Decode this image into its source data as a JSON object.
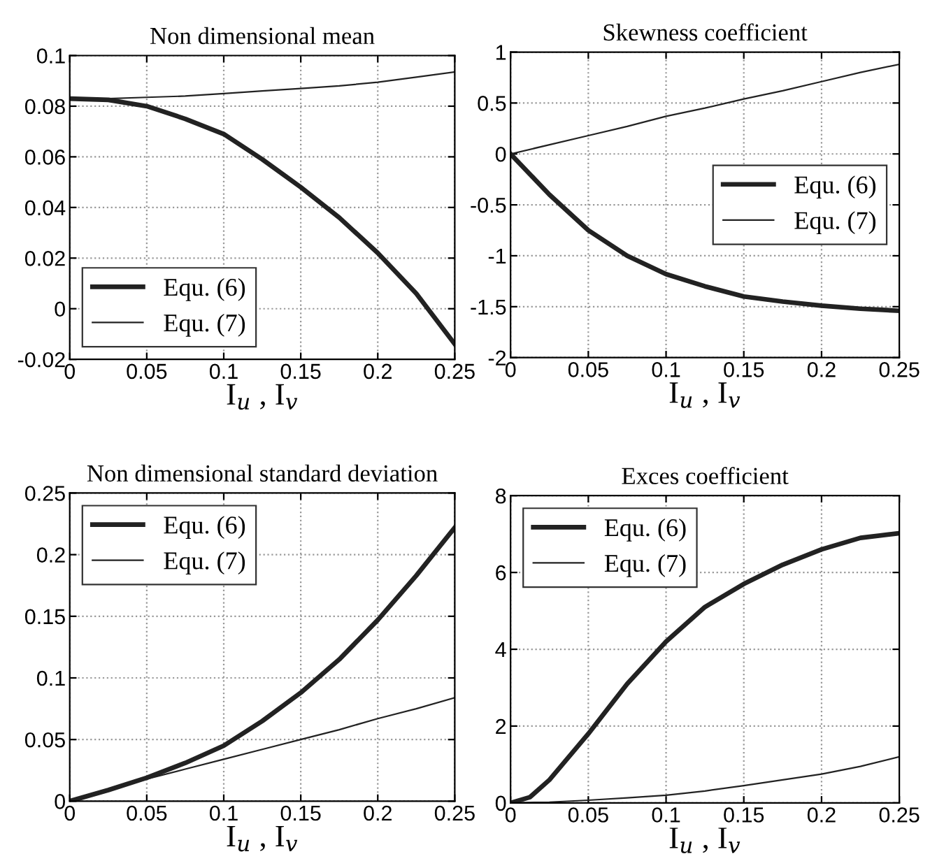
{
  "chart_data": [
    {
      "type": "line",
      "title": "Non dimensional mean",
      "xlabel": "I$_{u}$ , I$_{v}$",
      "x": [
        0,
        0.025,
        0.05,
        0.075,
        0.1,
        0.125,
        0.15,
        0.175,
        0.2,
        0.225,
        0.25
      ],
      "series": [
        {
          "name": "Equ. (6)",
          "color": "#222222",
          "values": [
            0.083,
            0.0825,
            0.08,
            0.075,
            0.069,
            0.059,
            0.048,
            0.036,
            0.022,
            0.006,
            -0.014
          ]
        },
        {
          "name": "Equ. (7)",
          "color": "#222222",
          "values": [
            0.083,
            0.083,
            0.0835,
            0.084,
            0.085,
            0.086,
            0.087,
            0.088,
            0.0895,
            0.0915,
            0.0935
          ]
        }
      ],
      "xlim": [
        0,
        0.25
      ],
      "ylim": [
        -0.02,
        0.1
      ],
      "xticks": [
        0,
        0.05,
        0.1,
        0.15,
        0.2,
        0.25
      ],
      "yticks": [
        -0.02,
        0,
        0.02,
        0.04,
        0.06,
        0.08,
        0.1
      ],
      "grid": true,
      "legend": "bottom left",
      "line_style": "solid",
      "marker": "none"
    },
    {
      "type": "line",
      "title": "Skewness coefficient",
      "xlabel": "I$_{u}$ , I$_{v}$",
      "x": [
        0,
        0.025,
        0.05,
        0.075,
        0.1,
        0.125,
        0.15,
        0.175,
        0.2,
        0.225,
        0.25
      ],
      "series": [
        {
          "name": "Equ. (6)",
          "color": "#222222",
          "values": [
            0,
            -0.4,
            -0.75,
            -1.0,
            -1.18,
            -1.3,
            -1.4,
            -1.45,
            -1.49,
            -1.52,
            -1.54
          ]
        },
        {
          "name": "Equ. (7)",
          "color": "#222222",
          "values": [
            0,
            0.09,
            0.18,
            0.27,
            0.37,
            0.45,
            0.54,
            0.62,
            0.71,
            0.8,
            0.88
          ]
        }
      ],
      "xlim": [
        0,
        0.25
      ],
      "ylim": [
        -2,
        1
      ],
      "xticks": [
        0,
        0.05,
        0.1,
        0.15,
        0.2,
        0.25
      ],
      "yticks": [
        -2,
        -1.5,
        -1,
        -0.5,
        0,
        0.5,
        1
      ],
      "grid": true,
      "legend": "right",
      "line_style": "solid",
      "marker": "none"
    },
    {
      "type": "line",
      "title": "Non dimensional standard deviation",
      "xlabel": "I$_{u}$ , I$_{v}$",
      "x": [
        0,
        0.025,
        0.05,
        0.075,
        0.1,
        0.125,
        0.15,
        0.175,
        0.2,
        0.225,
        0.25
      ],
      "series": [
        {
          "name": "Equ. (6)",
          "color": "#222222",
          "values": [
            0,
            0.009,
            0.019,
            0.031,
            0.045,
            0.065,
            0.088,
            0.115,
            0.147,
            0.183,
            0.222
          ]
        },
        {
          "name": "Equ. (7)",
          "color": "#222222",
          "values": [
            0,
            0.009,
            0.018,
            0.026,
            0.034,
            0.042,
            0.05,
            0.058,
            0.067,
            0.075,
            0.084
          ]
        }
      ],
      "xlim": [
        0,
        0.25
      ],
      "ylim": [
        0,
        0.25
      ],
      "xticks": [
        0,
        0.05,
        0.1,
        0.15,
        0.2,
        0.25
      ],
      "yticks": [
        0,
        0.05,
        0.1,
        0.15,
        0.2,
        0.25
      ],
      "grid": true,
      "legend": "top left",
      "line_style": "solid",
      "marker": "none"
    },
    {
      "type": "line",
      "title": "Exces coefficient",
      "xlabel": "I$_{u}$ , I$_{v}$",
      "x": [
        0,
        0.0125,
        0.025,
        0.05,
        0.075,
        0.1,
        0.125,
        0.15,
        0.175,
        0.2,
        0.225,
        0.25
      ],
      "series": [
        {
          "name": "Equ. (6)",
          "color": "#222222",
          "values": [
            0,
            0.15,
            0.6,
            1.8,
            3.1,
            4.2,
            5.1,
            5.7,
            6.2,
            6.6,
            6.9,
            7.02
          ]
        },
        {
          "name": "Equ. (7)",
          "color": "#222222",
          "values": [
            0,
            0.01,
            0.02,
            0.07,
            0.13,
            0.2,
            0.31,
            0.45,
            0.6,
            0.75,
            0.95,
            1.2
          ]
        }
      ],
      "xlim": [
        0,
        0.25
      ],
      "ylim": [
        0,
        8
      ],
      "xticks": [
        0,
        0.05,
        0.1,
        0.15,
        0.2,
        0.25
      ],
      "yticks": [
        0,
        2,
        4,
        6,
        8
      ],
      "grid": true,
      "legend": "top left",
      "line_style": "solid",
      "marker": "none"
    }
  ]
}
